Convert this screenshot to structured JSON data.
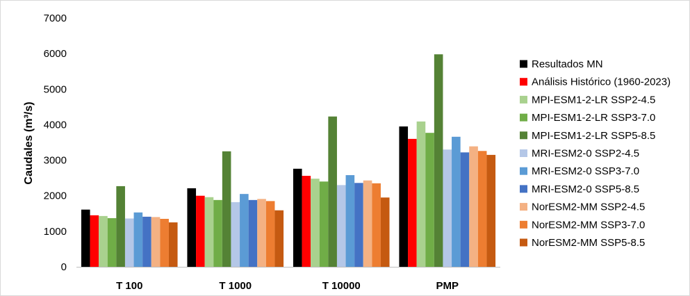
{
  "chart_data": {
    "type": "bar",
    "title": "",
    "xlabel": "",
    "ylabel": "Caudales (m³/s)",
    "ylim": [
      0,
      7000
    ],
    "yticks": [
      0,
      1000,
      2000,
      3000,
      4000,
      5000,
      6000,
      7000
    ],
    "grid": false,
    "legend_position": "right",
    "categories": [
      "T 100",
      "T 1000",
      "T 10000",
      "PMP"
    ],
    "series": [
      {
        "name": "Resultados MN",
        "color": "#000000",
        "values": [
          1610,
          2210,
          2760,
          3950
        ]
      },
      {
        "name": "Análisis Histórico (1960-2023)",
        "color": "#ff0000",
        "values": [
          1450,
          2000,
          2560,
          3600
        ]
      },
      {
        "name": "MPI-ESM1-2-LR SSP2-4.5",
        "color": "#a9d18e",
        "values": [
          1430,
          1960,
          2480,
          4090
        ]
      },
      {
        "name": "MPI-ESM1-2-LR SSP3-7.0",
        "color": "#70ad47",
        "values": [
          1370,
          1880,
          2400,
          3770
        ]
      },
      {
        "name": "MPI-ESM1-2-LR SSP5-8.5",
        "color": "#548235",
        "values": [
          2270,
          3250,
          4230,
          5980
        ]
      },
      {
        "name": "MRI-ESM2-0 SSP2-4.5",
        "color": "#b4c7e7",
        "values": [
          1360,
          1820,
          2300,
          3300
        ]
      },
      {
        "name": "MRI-ESM2-0 SSP3-7.0",
        "color": "#5b9bd5",
        "values": [
          1530,
          2050,
          2580,
          3660
        ]
      },
      {
        "name": "MRI-ESM2-0 SSP5-8.5",
        "color": "#4472c4",
        "values": [
          1410,
          1880,
          2360,
          3220
        ]
      },
      {
        "name": "NorESM2-MM SSP2-4.5",
        "color": "#f4b183",
        "values": [
          1400,
          1910,
          2430,
          3390
        ]
      },
      {
        "name": "NorESM2-MM SSP3-7.0",
        "color": "#ed7d31",
        "values": [
          1350,
          1850,
          2350,
          3260
        ]
      },
      {
        "name": "NorESM2-MM SSP5-8.5",
        "color": "#c55a11",
        "values": [
          1250,
          1590,
          1950,
          3150
        ]
      }
    ]
  }
}
